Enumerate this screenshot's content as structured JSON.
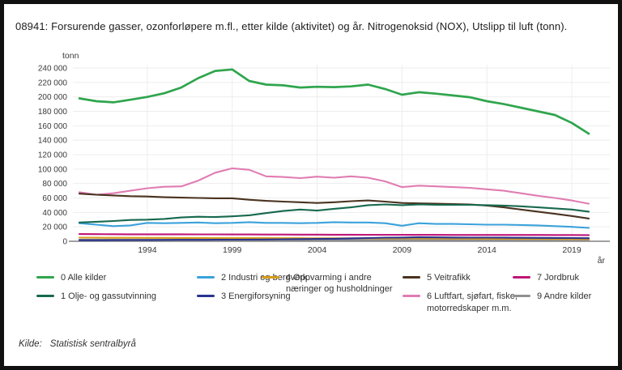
{
  "title": "08941: Forsurende gasser, ozonforløpere m.fl., etter kilde (aktivitet) og år. Nitrogenoksid (NOX), Utslipp til luft (tonn).",
  "source": {
    "label": "Kilde:",
    "value": "Statistisk sentralbyrå"
  },
  "chart_data": {
    "type": "line",
    "title": "08941: Forsurende gasser, ozonforløpere m.fl., etter kilde (aktivitet) og år. Nitrogenoksid (NOX), Utslipp til luft (tonn).",
    "ylabel": "tonn",
    "xlabel": "år",
    "grid": true,
    "legend_position": "bottom",
    "xlim": [
      1990,
      2020
    ],
    "ylim": [
      0,
      240000
    ],
    "x_ticks": [
      1994,
      1999,
      2004,
      2009,
      2014,
      2019
    ],
    "y_ticks": [
      0,
      20000,
      40000,
      60000,
      80000,
      100000,
      120000,
      140000,
      160000,
      180000,
      200000,
      220000,
      240000
    ],
    "y_tick_labels": [
      "0",
      "20 000",
      "40 000",
      "60 000",
      "80 000",
      "100 000",
      "120 000",
      "140 000",
      "160 000",
      "180 000",
      "200 000",
      "220 000",
      "240 000"
    ],
    "x": [
      1990,
      1991,
      1992,
      1993,
      1994,
      1995,
      1996,
      1997,
      1998,
      1999,
      2000,
      2001,
      2002,
      2003,
      2004,
      2005,
      2006,
      2007,
      2008,
      2009,
      2010,
      2011,
      2012,
      2013,
      2014,
      2015,
      2016,
      2017,
      2018,
      2019,
      2020
    ],
    "series": [
      {
        "name": "0 Alle kilder",
        "color": "#2FA54D",
        "values": [
          198000,
          194000,
          192500,
          196000,
          200000,
          205000,
          213000,
          226000,
          236000,
          238000,
          222000,
          217000,
          216000,
          213000,
          214000,
          213500,
          214500,
          217000,
          211000,
          203000,
          206500,
          204500,
          202000,
          199500,
          194000,
          190000,
          185000,
          180000,
          175000,
          164000,
          149000
        ]
      },
      {
        "name": "1 Olje- og gassutvinning",
        "color": "#17694E",
        "values": [
          26000,
          27000,
          28000,
          29500,
          30000,
          31000,
          33000,
          34000,
          33500,
          34500,
          36000,
          39000,
          42000,
          44000,
          42500,
          45000,
          47000,
          50000,
          51000,
          50000,
          51000,
          50500,
          50500,
          50500,
          50000,
          49500,
          48500,
          47000,
          45500,
          44000,
          41000
        ]
      },
      {
        "name": "2 Industri og bergverk",
        "color": "#3BA2DB",
        "values": [
          25000,
          23000,
          21000,
          22000,
          25500,
          25000,
          25500,
          26000,
          25000,
          25500,
          26500,
          25500,
          25500,
          25000,
          25500,
          26500,
          26000,
          26000,
          25000,
          21500,
          25000,
          24000,
          24000,
          23500,
          23000,
          23000,
          22500,
          22000,
          21000,
          20000,
          18500
        ]
      },
      {
        "name": "3 Energiforsyning",
        "color": "#29348E",
        "values": [
          1500,
          1500,
          1600,
          1700,
          1800,
          1900,
          2000,
          2000,
          2100,
          2200,
          2300,
          2500,
          2800,
          3000,
          3300,
          3500,
          4000,
          4500,
          5000,
          5200,
          5500,
          5400,
          5200,
          5100,
          5000,
          4900,
          4800,
          4700,
          4600,
          4500,
          4300
        ]
      },
      {
        "name": "4 Oppvarming i andre næringer og husholdninger",
        "color": "#D79C1F",
        "values": [
          5000,
          4900,
          4800,
          4800,
          4700,
          4700,
          4600,
          4600,
          4500,
          4500,
          4400,
          4400,
          4300,
          4300,
          4200,
          4200,
          4100,
          4100,
          4000,
          4000,
          3900,
          3800,
          3700,
          3600,
          3500,
          3400,
          3300,
          3200,
          3100,
          3000,
          2900
        ]
      },
      {
        "name": "5 Veitrafikk",
        "color": "#4A3320",
        "values": [
          66000,
          64500,
          63500,
          62500,
          62000,
          61000,
          60500,
          60000,
          59500,
          59500,
          57500,
          56000,
          55000,
          54000,
          53000,
          54000,
          55500,
          56500,
          55000,
          53000,
          52500,
          52000,
          51500,
          51000,
          49500,
          47000,
          44000,
          41000,
          38000,
          35000,
          31500
        ]
      },
      {
        "name": "6 Luftfart, sjøfart, fiske, motorredskaper m.m.",
        "color": "#E07CB2",
        "values": [
          68000,
          64500,
          66500,
          70000,
          73500,
          75500,
          76000,
          84000,
          95000,
          101000,
          99000,
          90000,
          89000,
          87500,
          89500,
          88000,
          90000,
          88000,
          83000,
          75000,
          77000,
          76000,
          75000,
          74000,
          72000,
          70000,
          66500,
          63000,
          60000,
          56500,
          52000
        ]
      },
      {
        "name": "7 Jordbruk",
        "color": "#BE1677",
        "values": [
          10000,
          9900,
          9800,
          9700,
          9700,
          9600,
          9600,
          9500,
          9500,
          9400,
          9400,
          9300,
          9300,
          9200,
          9200,
          9100,
          9100,
          9000,
          9000,
          9000,
          8900,
          8900,
          8800,
          8800,
          8800,
          8700,
          8700,
          8700,
          8600,
          8600,
          8500
        ]
      },
      {
        "name": "9 Andre kilder",
        "color": "#909090",
        "values": [
          2200,
          2150,
          2100,
          2100,
          2050,
          2050,
          2000,
          2000,
          2000,
          1950,
          1950,
          1900,
          1900,
          1850,
          1850,
          1800,
          1800,
          1750,
          1750,
          1700,
          1700,
          1650,
          1650,
          1600,
          1600,
          1550,
          1550,
          1500,
          1500,
          1450,
          1400
        ]
      }
    ]
  }
}
